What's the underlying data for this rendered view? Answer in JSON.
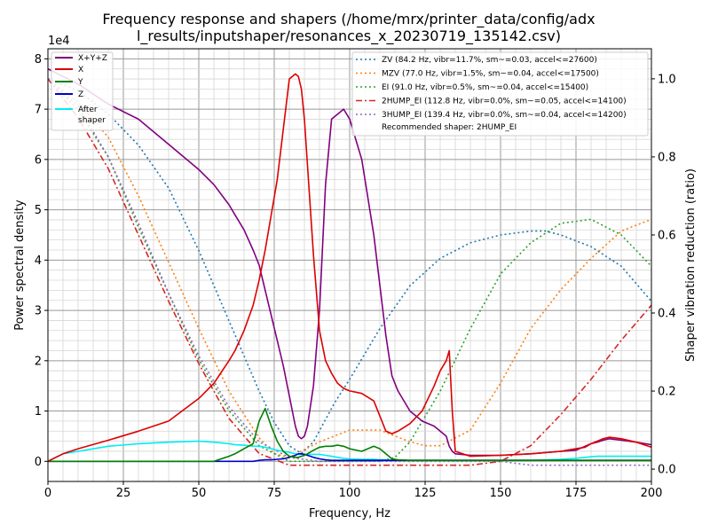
{
  "chart_data": {
    "type": "line",
    "title_line1": "Frequency response and shapers (/home/mrx/printer_data/config/adx",
    "title_line2": "l_results/inputshaper/resonances_x_20230719_135142.csv)",
    "xlabel": "Frequency, Hz",
    "ylabel": "Power spectral density",
    "y2label": "Shaper vibration reduction (ratio)",
    "y_offset_label": "1e4",
    "xlim": [
      0,
      200
    ],
    "ylim": [
      -0.4,
      8.2
    ],
    "y2lim": [
      -0.0316,
      1.077
    ],
    "xticks": [
      0,
      25,
      50,
      75,
      100,
      125,
      150,
      175,
      200
    ],
    "yticks": [
      0,
      1,
      2,
      3,
      4,
      5,
      6,
      7,
      8
    ],
    "y2ticks": [
      0.0,
      0.2,
      0.4,
      0.6,
      0.8,
      1.0
    ],
    "y2tick_labels": [
      "0.0",
      "0.2",
      "0.4",
      "0.6",
      "0.8",
      "1.0"
    ],
    "psd_series": [
      {
        "name": "X+Y+Z",
        "color": "#800080",
        "x": [
          0,
          5,
          10,
          20,
          30,
          40,
          50,
          55,
          60,
          62,
          65,
          68,
          70,
          72,
          74,
          76,
          78,
          80,
          82,
          83,
          84,
          85,
          86,
          88,
          90,
          92,
          94,
          96,
          98,
          100,
          104,
          108,
          110,
          112,
          114,
          116,
          120,
          124,
          128,
          130,
          132,
          133,
          134,
          135,
          140,
          150,
          160,
          170,
          175,
          178,
          180,
          182,
          184,
          186,
          190,
          195,
          200
        ],
        "y": [
          7.8,
          7.65,
          7.5,
          7.1,
          6.8,
          6.3,
          5.8,
          5.5,
          5.1,
          4.9,
          4.6,
          4.2,
          3.9,
          3.4,
          2.9,
          2.4,
          1.9,
          1.3,
          0.7,
          0.5,
          0.45,
          0.5,
          0.7,
          1.5,
          3.0,
          5.5,
          6.8,
          6.9,
          7.0,
          6.8,
          6.0,
          4.5,
          3.5,
          2.5,
          1.7,
          1.4,
          1.0,
          0.8,
          0.7,
          0.6,
          0.5,
          0.3,
          0.2,
          0.15,
          0.12,
          0.12,
          0.15,
          0.2,
          0.22,
          0.3,
          0.35,
          0.38,
          0.42,
          0.45,
          0.42,
          0.38,
          0.33
        ]
      },
      {
        "name": "X",
        "color": "#dd0000",
        "x": [
          0,
          5,
          10,
          20,
          30,
          40,
          50,
          55,
          60,
          62,
          65,
          68,
          70,
          72,
          74,
          76,
          78,
          80,
          82,
          83,
          84,
          85,
          86,
          88,
          90,
          92,
          94,
          96,
          98,
          100,
          104,
          108,
          110,
          112,
          114,
          116,
          120,
          124,
          128,
          130,
          132,
          133,
          134,
          135,
          140,
          150,
          160,
          170,
          175,
          178,
          180,
          182,
          184,
          186,
          190,
          195,
          200
        ],
        "y": [
          0.0,
          0.15,
          0.25,
          0.42,
          0.6,
          0.8,
          1.25,
          1.55,
          2.0,
          2.2,
          2.6,
          3.1,
          3.6,
          4.2,
          4.9,
          5.6,
          6.6,
          7.6,
          7.7,
          7.65,
          7.4,
          6.8,
          5.9,
          4.1,
          2.6,
          2.0,
          1.75,
          1.55,
          1.45,
          1.4,
          1.35,
          1.2,
          0.9,
          0.6,
          0.55,
          0.6,
          0.75,
          1.0,
          1.5,
          1.8,
          2.0,
          2.2,
          1.0,
          0.2,
          0.1,
          0.12,
          0.15,
          0.2,
          0.25,
          0.28,
          0.35,
          0.4,
          0.45,
          0.48,
          0.45,
          0.38,
          0.28
        ]
      },
      {
        "name": "Y",
        "color": "#008000",
        "x": [
          0,
          5,
          10,
          20,
          30,
          40,
          50,
          55,
          60,
          62,
          65,
          68,
          70,
          72,
          74,
          76,
          78,
          80,
          82,
          83,
          84,
          85,
          86,
          88,
          90,
          92,
          94,
          96,
          98,
          100,
          104,
          108,
          110,
          112,
          114,
          116,
          120,
          124,
          128,
          130,
          132,
          133,
          134,
          135,
          140,
          150,
          160,
          170,
          175,
          178,
          180,
          182,
          184,
          186,
          190,
          195,
          200
        ],
        "y": [
          0,
          0,
          0,
          0,
          0,
          0,
          0,
          0,
          0.1,
          0.15,
          0.25,
          0.35,
          0.8,
          1.05,
          0.7,
          0.4,
          0.2,
          0.1,
          0.08,
          0.08,
          0.1,
          0.12,
          0.15,
          0.22,
          0.28,
          0.3,
          0.3,
          0.32,
          0.3,
          0.25,
          0.2,
          0.3,
          0.25,
          0.15,
          0.05,
          0.03,
          0.02,
          0.02,
          0.02,
          0.02,
          0.02,
          0.02,
          0.02,
          0.02,
          0.02,
          0.02,
          0.02,
          0.02,
          0.02,
          0.02,
          0.02,
          0.02,
          0.02,
          0.02,
          0.02,
          0.02,
          0.02
        ]
      },
      {
        "name": "Z",
        "color": "#0000cc",
        "x": [
          0,
          5,
          10,
          20,
          30,
          40,
          50,
          55,
          60,
          62,
          65,
          68,
          70,
          72,
          74,
          76,
          78,
          80,
          82,
          83,
          84,
          85,
          86,
          88,
          90,
          92,
          94,
          96,
          98,
          100,
          104,
          108,
          110,
          112,
          114,
          116,
          120,
          124,
          128,
          130,
          132,
          133,
          134,
          135,
          140,
          150,
          160,
          170,
          175,
          178,
          180,
          182,
          184,
          186,
          190,
          195,
          200
        ],
        "y": [
          0,
          0,
          0,
          0,
          0,
          0,
          0,
          0,
          0,
          0,
          0,
          0,
          0.02,
          0.03,
          0.03,
          0.04,
          0.05,
          0.08,
          0.12,
          0.15,
          0.15,
          0.14,
          0.12,
          0.08,
          0.05,
          0.03,
          0.02,
          0.02,
          0.02,
          0.02,
          0.02,
          0.02,
          0.02,
          0.02,
          0.02,
          0.02,
          0.02,
          0.02,
          0.02,
          0.02,
          0.02,
          0.02,
          0.02,
          0.02,
          0.02,
          0.02,
          0.02,
          0.02,
          0.02,
          0.02,
          0.02,
          0.02,
          0.02,
          0.02,
          0.02,
          0.02,
          0.02
        ]
      },
      {
        "name": "After shaper",
        "color": "#00eeee",
        "x": [
          0,
          5,
          10,
          20,
          30,
          40,
          50,
          55,
          60,
          62,
          65,
          68,
          70,
          72,
          74,
          76,
          78,
          80,
          82,
          83,
          84,
          85,
          86,
          88,
          90,
          92,
          94,
          96,
          98,
          100,
          104,
          108,
          110,
          112,
          114,
          116,
          120,
          124,
          128,
          130,
          132,
          133,
          134,
          135,
          140,
          150,
          160,
          170,
          175,
          178,
          180,
          182,
          184,
          186,
          190,
          195,
          200
        ],
        "y": [
          0,
          0.15,
          0.2,
          0.3,
          0.35,
          0.38,
          0.4,
          0.38,
          0.35,
          0.33,
          0.32,
          0.3,
          0.3,
          0.28,
          0.25,
          0.22,
          0.2,
          0.18,
          0.15,
          0.14,
          0.14,
          0.14,
          0.14,
          0.14,
          0.14,
          0.12,
          0.1,
          0.08,
          0.06,
          0.05,
          0.04,
          0.04,
          0.03,
          0.03,
          0.02,
          0.02,
          0.02,
          0.02,
          0.02,
          0.02,
          0.02,
          0.02,
          0.02,
          0.02,
          0.02,
          0.02,
          0.02,
          0.04,
          0.06,
          0.08,
          0.09,
          0.1,
          0.1,
          0.1,
          0.1,
          0.1,
          0.1
        ]
      }
    ],
    "shaper_series": [
      {
        "name": "ZV (84.2 Hz, vibr=11.7%, sm~=0.03, accel<=27600)",
        "color": "#1f77b4",
        "dash": "2,3",
        "x": [
          0,
          10,
          20,
          30,
          40,
          50,
          60,
          70,
          75,
          80,
          84,
          88,
          95,
          100,
          110,
          120,
          130,
          140,
          150,
          160,
          165,
          170,
          180,
          190,
          200
        ],
        "y": [
          1.0,
          0.97,
          0.91,
          0.83,
          0.72,
          0.56,
          0.38,
          0.2,
          0.12,
          0.06,
          0.04,
          0.07,
          0.17,
          0.23,
          0.36,
          0.47,
          0.54,
          0.58,
          0.6,
          0.61,
          0.61,
          0.6,
          0.57,
          0.52,
          0.43
        ]
      },
      {
        "name": "MZV (77.0 Hz, vibr=1.5%, sm~=0.04, accel<=17500)",
        "color": "#ff7f0e",
        "dash": "2,3",
        "x": [
          0,
          10,
          20,
          30,
          40,
          50,
          60,
          70,
          75,
          80,
          90,
          100,
          110,
          120,
          125,
          130,
          140,
          150,
          160,
          170,
          180,
          190,
          200
        ],
        "y": [
          1.0,
          0.94,
          0.85,
          0.7,
          0.53,
          0.36,
          0.2,
          0.08,
          0.04,
          0.03,
          0.07,
          0.1,
          0.1,
          0.07,
          0.06,
          0.06,
          0.1,
          0.22,
          0.36,
          0.46,
          0.54,
          0.61,
          0.64
        ]
      },
      {
        "name": "EI (91.0 Hz, vibr=0.5%, sm~=0.04, accel<=15400)",
        "color": "#2ca02c",
        "dash": "2,3",
        "x": [
          0,
          10,
          20,
          30,
          40,
          50,
          60,
          70,
          80,
          90,
          100,
          110,
          115,
          120,
          130,
          140,
          150,
          160,
          170,
          180,
          190,
          200
        ],
        "y": [
          1.0,
          0.92,
          0.8,
          0.62,
          0.45,
          0.28,
          0.15,
          0.06,
          0.02,
          0.02,
          0.02,
          0.02,
          0.03,
          0.07,
          0.2,
          0.36,
          0.5,
          0.58,
          0.63,
          0.64,
          0.6,
          0.52
        ]
      },
      {
        "name": "2HUMP_EI (112.8 Hz, vibr=0.0%, sm~=0.05, accel<=14100)",
        "color": "#d62728",
        "dash": "7,3,2,3",
        "x": [
          0,
          10,
          20,
          30,
          40,
          50,
          60,
          70,
          80,
          90,
          100,
          110,
          120,
          130,
          140,
          150,
          160,
          170,
          180,
          190,
          200
        ],
        "y": [
          1.0,
          0.9,
          0.77,
          0.6,
          0.43,
          0.27,
          0.13,
          0.04,
          0.01,
          0.01,
          0.01,
          0.01,
          0.01,
          0.01,
          0.01,
          0.02,
          0.06,
          0.14,
          0.23,
          0.33,
          0.42
        ]
      },
      {
        "name": "3HUMP_EI (139.4 Hz, vibr=0.0%, sm~=0.04, accel<=14200)",
        "color": "#9467bd",
        "dash": "2,3",
        "x": [
          0,
          10,
          20,
          30,
          40,
          50,
          60,
          70,
          80,
          90,
          100,
          110,
          120,
          130,
          140,
          150,
          160,
          170,
          180,
          190,
          200
        ],
        "y": [
          1.0,
          0.93,
          0.8,
          0.63,
          0.45,
          0.29,
          0.16,
          0.07,
          0.03,
          0.02,
          0.02,
          0.02,
          0.02,
          0.02,
          0.02,
          0.02,
          0.01,
          0.01,
          0.01,
          0.01,
          0.01
        ]
      }
    ],
    "legend_left": [
      "X+Y+Z",
      "X",
      "Y",
      "Z",
      "After",
      "shaper"
    ],
    "legend_left_placement": "top-left",
    "legend_right_placement": "top-right",
    "recommended_label": "Recommended shaper: 2HUMP_EI",
    "grid": true
  }
}
